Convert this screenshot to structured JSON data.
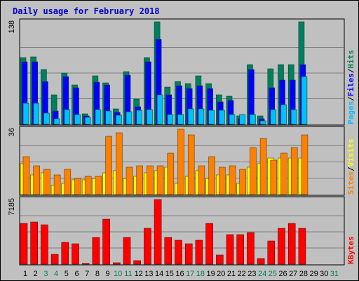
{
  "chart_data": {
    "type": "bar",
    "title": "Daily usage for February 2018",
    "x": [
      "1",
      "2",
      "3",
      "4",
      "5",
      "6",
      "7",
      "8",
      "9",
      "10",
      "11",
      "12",
      "13",
      "14",
      "15",
      "16",
      "17",
      "18",
      "19",
      "20",
      "21",
      "22",
      "23",
      "24",
      "25",
      "26",
      "27",
      "28",
      "29",
      "30",
      "31"
    ],
    "weekend_days": [
      "3",
      "4",
      "10",
      "11",
      "17",
      "18",
      "24",
      "25",
      "31"
    ],
    "panels": [
      {
        "id": "hits-files-pages",
        "ymax_label": "138",
        "ylim": [
          0,
          138
        ],
        "legend": [
          "Pages",
          "Files",
          "Hits"
        ],
        "series": [
          {
            "name": "Hits",
            "color": "#00805c",
            "values": [
              90,
              91,
              74,
              40,
              69,
              53,
              14,
              65,
              56,
              21,
              71,
              34,
              90,
              138,
              50,
              58,
              55,
              65,
              55,
              40,
              38,
              11,
              80,
              11,
              75,
              80,
              80,
              138
            ]
          },
          {
            "name": "Files",
            "color": "#0000ff",
            "values": [
              84,
              84,
              58,
              18,
              64,
              49,
              11,
              57,
              53,
              16,
              66,
              24,
              84,
              114,
              40,
              52,
              48,
              52,
              48,
              30,
              32,
              8,
              74,
              8,
              49,
              60,
              60,
              80
            ]
          },
          {
            "name": "Pages",
            "color": "#00c0ff",
            "values": [
              28,
              28,
              15,
              8,
              20,
              13,
              9,
              20,
              18,
              12,
              17,
              19,
              20,
              40,
              13,
              13,
              21,
              21,
              19,
              19,
              13,
              13,
              13,
              5,
              20,
              26,
              20,
              64
            ]
          }
        ]
      },
      {
        "id": "sites-visits",
        "ymax_label": "36",
        "ylim": [
          0,
          36
        ],
        "legend": [
          "Sites",
          "Visits"
        ],
        "series": [
          {
            "name": "Visits",
            "color": "#ffff00",
            "values": [
              17,
              11,
              12,
              5,
              6,
              8,
              8,
              9,
              12,
              13,
              9,
              10,
              12,
              13,
              15,
              6,
              10,
              13,
              9,
              11,
              11,
              6,
              15,
              17,
              20,
              20,
              20,
              20
            ]
          },
          {
            "name": "Sites",
            "color": "#ff8000",
            "values": [
              21,
              16,
              14,
              11,
              14,
              9,
              10,
              10,
              32,
              34,
              15,
              16,
              16,
              16,
              23,
              36,
              33,
              16,
              21,
              15,
              16,
              14,
              26,
              31,
              19,
              23,
              26,
              33
            ]
          }
        ]
      },
      {
        "id": "kbytes",
        "ymax_label": "7185",
        "ylim": [
          0,
          7185
        ],
        "legend": [
          "KBytes"
        ],
        "series": [
          {
            "name": "KBytes",
            "color": "#ff0000",
            "values": [
              4500,
              4700,
              4350,
              1100,
              2450,
              2300,
              80,
              2950,
              5000,
              150,
              2950,
              380,
              3950,
              7185,
              2950,
              2650,
              2250,
              2650,
              4500,
              1050,
              3300,
              3300,
              3550,
              650,
              2550,
              3950,
              4550,
              3950
            ]
          }
        ]
      }
    ],
    "grid": true
  }
}
